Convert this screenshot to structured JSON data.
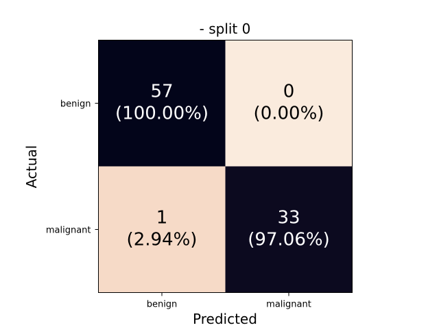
{
  "chart_data": {
    "type": "heatmap",
    "title": "- split 0",
    "xlabel": "Predicted",
    "ylabel": "Actual",
    "x_categories": [
      "benign",
      "malignant"
    ],
    "y_categories": [
      "benign",
      "malignant"
    ],
    "cells": [
      [
        {
          "count": "57",
          "percent": "(100.00%)",
          "value": 100.0,
          "fill": "#03051a",
          "text_color": "#ffffff"
        },
        {
          "count": "0",
          "percent": "(0.00%)",
          "value": 0.0,
          "fill": "#faebdd",
          "text_color": "#000000"
        }
      ],
      [
        {
          "count": "1",
          "percent": "(2.94%)",
          "value": 2.94,
          "fill": "#f6dac7",
          "text_color": "#000000"
        },
        {
          "count": "33",
          "percent": "(97.06%)",
          "value": 97.06,
          "fill": "#0c0a1f",
          "text_color": "#ffffff"
        }
      ]
    ]
  }
}
